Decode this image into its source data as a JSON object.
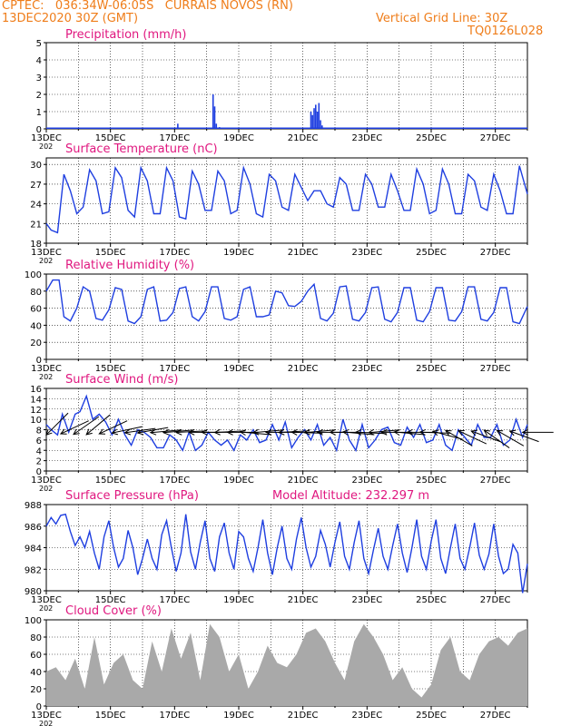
{
  "header": {
    "line1": "CPTEC:   036:34W-06:05S   CURRAIS NOVOS (RN)",
    "line2": "13DEC2020 30Z (GMT)",
    "grid_note": "Vertical Grid Line: 30Z",
    "code": "TQ0126L028"
  },
  "colors": {
    "header_text": "#ef7d1a",
    "panel_title": "#e0177f",
    "series": "#1f3fe0",
    "wind_arrows": "#000000",
    "cloud_fill": "#a9a9a9"
  },
  "x_axis": {
    "start": "13DEC",
    "end": "28DEC",
    "days": 15,
    "tick_labels": [
      "13DEC",
      "15DEC",
      "17DEC",
      "19DEC",
      "21DEC",
      "23DEC",
      "25DEC",
      "27DEC"
    ],
    "cut_year_label": "202"
  },
  "chart_data": [
    {
      "type": "bar",
      "title": "Precipitation (mm/h)",
      "ylim": [
        0,
        5
      ],
      "yticks": [
        "0",
        "1",
        "2",
        "3",
        "4",
        "5"
      ],
      "x": [
        4.1,
        5.2,
        5.25,
        5.3,
        5.4,
        8.25,
        8.3,
        8.35,
        8.4,
        8.45,
        8.5,
        8.55,
        8.6
      ],
      "values": [
        0.3,
        2.0,
        1.3,
        0.3,
        0.1,
        1.0,
        0.8,
        1.2,
        1.4,
        1.0,
        1.5,
        0.5,
        0.2
      ],
      "baseline_value": 0.04
    },
    {
      "type": "line",
      "title": "Surface Temperature (nC)",
      "ylim": [
        18,
        31
      ],
      "yticks": [
        "18",
        "21",
        "24",
        "27",
        "30"
      ],
      "x": [
        0,
        0.15,
        0.35,
        0.55,
        0.75,
        0.95,
        1.15,
        1.35,
        1.55,
        1.75,
        1.95,
        2.15,
        2.35,
        2.55,
        2.75,
        2.95,
        3.15,
        3.35,
        3.55,
        3.75,
        3.95,
        4.15,
        4.35,
        4.55,
        4.75,
        4.95,
        5.15,
        5.35,
        5.55,
        5.75,
        5.95,
        6.15,
        6.35,
        6.55,
        6.75,
        6.95,
        7.15,
        7.35,
        7.55,
        7.75,
        7.95,
        8.15,
        8.35,
        8.55,
        8.75,
        8.95,
        9.15,
        9.35,
        9.55,
        9.75,
        9.95,
        10.15,
        10.35,
        10.55,
        10.75,
        10.95,
        11.15,
        11.35,
        11.55,
        11.75,
        11.95,
        12.15,
        12.35,
        12.55,
        12.75,
        12.95,
        13.15,
        13.35,
        13.55,
        13.75,
        13.95,
        14.15,
        14.35,
        14.55,
        14.75,
        15.0
      ],
      "values": [
        21,
        20,
        19.6,
        28.5,
        26,
        22.5,
        23.5,
        29.2,
        27.5,
        22.5,
        22.8,
        29.5,
        28,
        23,
        22,
        29.5,
        27.5,
        22.5,
        22.5,
        29.5,
        27.5,
        22,
        21.7,
        29,
        27,
        23,
        23,
        29,
        27.5,
        22.5,
        23,
        29.5,
        27,
        22.5,
        22,
        28.5,
        27.5,
        23.5,
        23,
        28.5,
        26.5,
        24.5,
        26,
        26,
        24,
        23.5,
        28,
        27,
        23,
        23,
        28.5,
        27,
        23.5,
        23.5,
        28.5,
        26,
        23,
        23,
        29.3,
        27,
        22.5,
        23,
        29.3,
        27,
        22.5,
        22.5,
        28.5,
        27.5,
        23.5,
        23,
        28.5,
        26,
        22.5,
        22.5,
        29.8,
        25.5
      ]
    },
    {
      "type": "line",
      "title": "Relative Humidity (%)",
      "ylim": [
        0,
        100
      ],
      "yticks": [
        "0",
        "20",
        "40",
        "60",
        "80",
        "100"
      ],
      "x": [
        0,
        0.2,
        0.4,
        0.55,
        0.75,
        0.95,
        1.15,
        1.35,
        1.55,
        1.75,
        1.95,
        2.15,
        2.35,
        2.55,
        2.75,
        2.95,
        3.15,
        3.35,
        3.55,
        3.75,
        3.95,
        4.15,
        4.35,
        4.55,
        4.75,
        4.95,
        5.15,
        5.35,
        5.55,
        5.75,
        5.95,
        6.15,
        6.35,
        6.55,
        6.75,
        6.95,
        7.15,
        7.35,
        7.55,
        7.75,
        7.95,
        8.15,
        8.35,
        8.55,
        8.75,
        8.95,
        9.15,
        9.35,
        9.55,
        9.75,
        9.95,
        10.15,
        10.35,
        10.55,
        10.75,
        10.95,
        11.15,
        11.35,
        11.55,
        11.75,
        11.95,
        12.15,
        12.35,
        12.55,
        12.75,
        12.95,
        13.15,
        13.35,
        13.55,
        13.75,
        13.95,
        14.15,
        14.35,
        14.55,
        14.75,
        15.0
      ],
      "values": [
        80,
        93,
        93,
        50,
        45,
        60,
        85,
        80,
        48,
        46,
        58,
        84,
        82,
        45,
        42,
        50,
        82,
        85,
        45,
        46,
        55,
        83,
        85,
        50,
        45,
        56,
        85,
        85,
        48,
        46,
        50,
        82,
        85,
        50,
        50,
        52,
        80,
        78,
        63,
        62,
        68,
        80,
        88,
        48,
        45,
        54,
        85,
        86,
        47,
        45,
        55,
        84,
        85,
        47,
        44,
        55,
        84,
        84,
        46,
        44,
        56,
        84,
        84,
        46,
        45,
        56,
        85,
        85,
        47,
        45,
        55,
        84,
        84,
        44,
        42,
        62
      ]
    },
    {
      "type": "line",
      "title": "Surface Wind (m/s)",
      "ylim": [
        0,
        16
      ],
      "yticks": [
        "0",
        "2",
        "4",
        "6",
        "8",
        "10",
        "12",
        "14",
        "16"
      ],
      "x": [
        0,
        0.15,
        0.35,
        0.5,
        0.7,
        0.9,
        1.05,
        1.25,
        1.45,
        1.65,
        1.85,
        2.05,
        2.25,
        2.45,
        2.65,
        2.85,
        3.05,
        3.25,
        3.45,
        3.65,
        3.85,
        4.05,
        4.25,
        4.45,
        4.65,
        4.85,
        5.05,
        5.25,
        5.45,
        5.65,
        5.85,
        6.05,
        6.25,
        6.45,
        6.65,
        6.85,
        7.05,
        7.25,
        7.45,
        7.65,
        7.85,
        8.05,
        8.25,
        8.45,
        8.65,
        8.85,
        9.05,
        9.25,
        9.45,
        9.65,
        9.85,
        10.05,
        10.25,
        10.45,
        10.65,
        10.85,
        11.05,
        11.25,
        11.45,
        11.65,
        11.85,
        12.05,
        12.25,
        12.45,
        12.65,
        12.85,
        13.05,
        13.25,
        13.45,
        13.65,
        13.85,
        14.05,
        14.25,
        14.45,
        14.65,
        14.85,
        15.0
      ],
      "values": [
        9,
        8,
        7,
        11,
        7.5,
        11,
        11.5,
        14.5,
        10,
        11,
        9.5,
        7,
        10,
        7,
        5,
        8,
        7.5,
        6.5,
        4.5,
        4.5,
        7,
        6,
        4,
        7.5,
        4,
        5,
        7.5,
        6,
        5,
        6,
        4,
        7,
        6,
        8,
        5.5,
        6,
        9,
        6,
        9.5,
        4.5,
        6.5,
        8,
        6,
        9,
        5,
        6.5,
        4,
        10,
        6,
        4,
        9,
        4.5,
        6,
        8,
        8.5,
        5.5,
        5,
        8.5,
        6.5,
        9,
        5.5,
        6,
        9,
        5,
        4,
        8,
        6.5,
        5,
        9,
        6.5,
        6.5,
        9,
        5,
        6,
        10,
        6.5,
        9
      ],
      "arrow_positions": [
        0,
        0.45,
        0.85,
        1.25,
        1.65,
        2.05,
        2.45,
        2.85,
        3.25,
        3.65,
        4.05,
        4.45,
        4.85,
        5.25,
        5.65,
        6.05,
        6.45,
        6.85,
        7.25,
        7.65,
        8.05,
        8.45,
        8.85,
        9.25,
        9.65,
        10.05,
        10.45,
        10.85,
        11.25,
        11.65,
        12.05,
        12.45,
        12.85,
        13.25,
        13.65,
        14.05,
        14.45,
        14.85
      ],
      "arrow_dir_deg": [
        -45,
        -25,
        -35,
        -40,
        -25,
        -12,
        -8,
        -10,
        -5,
        -5,
        -3,
        0,
        0,
        -3,
        0,
        5,
        -5,
        0,
        -3,
        2,
        -5,
        0,
        0,
        5,
        3,
        -5,
        0,
        5,
        0,
        2,
        15,
        30,
        25,
        20,
        35,
        30,
        20,
        0
      ]
    },
    {
      "type": "line",
      "title": "Surface Pressure (hPa)",
      "annotation": "Model Altitude: 232.297 m",
      "ylim": [
        980,
        988
      ],
      "yticks": [
        "980",
        "982",
        "984",
        "986",
        "988"
      ],
      "x": [
        0,
        0.15,
        0.3,
        0.45,
        0.6,
        0.75,
        0.9,
        1.05,
        1.2,
        1.35,
        1.5,
        1.65,
        1.8,
        1.95,
        2.1,
        2.25,
        2.4,
        2.55,
        2.7,
        2.85,
        3.0,
        3.15,
        3.3,
        3.45,
        3.6,
        3.75,
        3.9,
        4.05,
        4.2,
        4.35,
        4.5,
        4.65,
        4.8,
        4.95,
        5.1,
        5.25,
        5.4,
        5.55,
        5.7,
        5.85,
        6.0,
        6.15,
        6.3,
        6.45,
        6.6,
        6.75,
        6.9,
        7.05,
        7.2,
        7.35,
        7.5,
        7.65,
        7.8,
        7.95,
        8.1,
        8.25,
        8.4,
        8.55,
        8.7,
        8.85,
        9.0,
        9.15,
        9.3,
        9.45,
        9.6,
        9.75,
        9.9,
        10.05,
        10.2,
        10.35,
        10.5,
        10.65,
        10.8,
        10.95,
        11.1,
        11.25,
        11.4,
        11.55,
        11.7,
        11.85,
        12.0,
        12.15,
        12.3,
        12.45,
        12.6,
        12.75,
        12.9,
        13.05,
        13.2,
        13.35,
        13.5,
        13.65,
        13.8,
        13.95,
        14.1,
        14.25,
        14.4,
        14.55,
        14.7,
        14.85,
        15.0
      ],
      "values": [
        986,
        986.8,
        986.2,
        987,
        987.1,
        985.5,
        984.2,
        985,
        984,
        985.5,
        983.5,
        982,
        985,
        986.5,
        984,
        982.2,
        983,
        985.6,
        984,
        981.5,
        983,
        984.8,
        983,
        982,
        985.2,
        986.5,
        984,
        981.8,
        983.5,
        987.1,
        983.6,
        982,
        984.5,
        986.5,
        983,
        981.8,
        985,
        986.3,
        983.5,
        982,
        985.5,
        985,
        983,
        981.8,
        984,
        986.6,
        983.5,
        981.5,
        984,
        986,
        983,
        982,
        984.8,
        986.8,
        984,
        982.2,
        983.2,
        985.6,
        984.3,
        982.2,
        984.5,
        986.4,
        983.2,
        982,
        984.5,
        986.5,
        983,
        981.6,
        983.8,
        985.8,
        983.2,
        982,
        984.2,
        986.2,
        983.5,
        981.7,
        984,
        986.6,
        983.2,
        982,
        984.6,
        986.6,
        983,
        981.6,
        984,
        986.2,
        983,
        982,
        984,
        986.3,
        983.3,
        982,
        983.4,
        986.2,
        983.2,
        981.6,
        982,
        984.3,
        983.5,
        979.8,
        982.5
      ]
    },
    {
      "type": "area",
      "title": "Cloud Cover (%)",
      "ylim": [
        0,
        100
      ],
      "yticks": [
        "0",
        "20",
        "40",
        "60",
        "80",
        "100"
      ],
      "x": [
        0,
        0.3,
        0.6,
        0.9,
        1.2,
        1.5,
        1.8,
        2.1,
        2.4,
        2.7,
        3.0,
        3.3,
        3.6,
        3.9,
        4.2,
        4.5,
        4.8,
        5.1,
        5.4,
        5.7,
        6.0,
        6.3,
        6.6,
        6.9,
        7.2,
        7.5,
        7.8,
        8.1,
        8.4,
        8.7,
        9.0,
        9.3,
        9.6,
        9.9,
        10.2,
        10.5,
        10.8,
        11.1,
        11.4,
        11.7,
        12.0,
        12.3,
        12.6,
        12.9,
        13.2,
        13.5,
        13.8,
        14.1,
        14.4,
        14.7,
        15.0
      ],
      "values": [
        40,
        45,
        30,
        55,
        20,
        80,
        25,
        50,
        60,
        30,
        20,
        75,
        40,
        90,
        55,
        85,
        30,
        95,
        80,
        40,
        60,
        20,
        40,
        70,
        50,
        45,
        60,
        85,
        90,
        75,
        50,
        30,
        75,
        95,
        80,
        60,
        30,
        45,
        20,
        10,
        25,
        65,
        80,
        40,
        30,
        60,
        75,
        80,
        70,
        85,
        90
      ]
    }
  ]
}
